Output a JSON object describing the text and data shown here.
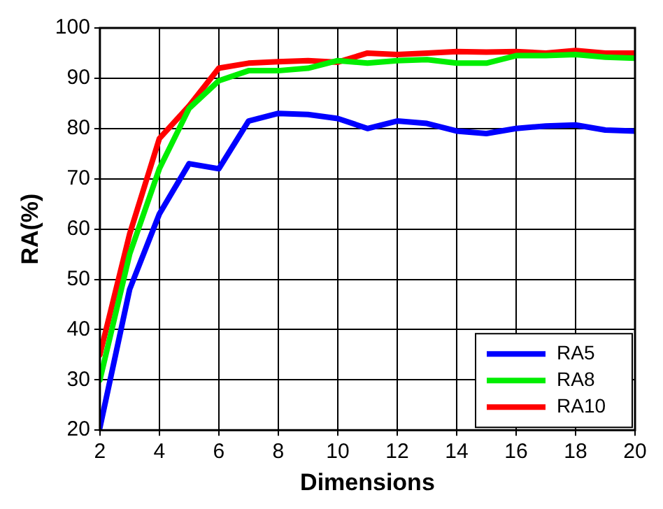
{
  "chart_data": {
    "type": "line",
    "xlabel": "Dimensions",
    "ylabel": "RA(%)",
    "x": [
      2,
      3,
      4,
      5,
      6,
      7,
      8,
      9,
      10,
      11,
      12,
      13,
      14,
      15,
      16,
      17,
      18,
      19,
      20
    ],
    "series": [
      {
        "name": "RA5",
        "color": "#0000ff",
        "values": [
          20.5,
          48,
          63,
          73,
          72,
          81.5,
          83,
          82.8,
          82,
          80,
          81.5,
          81,
          79.5,
          79,
          80,
          80.5,
          80.7,
          79.7,
          79.5
        ]
      },
      {
        "name": "RA8",
        "color": "#00ee00",
        "values": [
          30,
          55,
          72,
          84,
          89.5,
          91.5,
          91.5,
          92,
          93.5,
          93,
          93.5,
          93.7,
          93,
          93,
          94.5,
          94.5,
          94.7,
          94.2,
          94
        ]
      },
      {
        "name": "RA10",
        "color": "#ff0000",
        "values": [
          35,
          59,
          78,
          84.5,
          92,
          93,
          93.3,
          93.5,
          93.2,
          95,
          94.7,
          95,
          95.3,
          95.2,
          95.3,
          95,
          95.5,
          95,
          95
        ]
      }
    ],
    "xlim": [
      2,
      20
    ],
    "xticks": [
      2,
      4,
      6,
      8,
      10,
      12,
      14,
      16,
      18,
      20
    ],
    "ylim": [
      20,
      100
    ],
    "yticks": [
      20,
      30,
      40,
      50,
      60,
      70,
      80,
      90,
      100
    ],
    "grid": true,
    "legend": "bottom right",
    "marker": "none",
    "line_style": "solid"
  }
}
